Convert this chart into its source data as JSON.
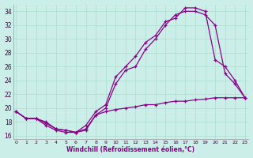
{
  "xlabel": "Windchill (Refroidissement éolien,°C)",
  "x_ticks": [
    0,
    1,
    2,
    3,
    4,
    5,
    6,
    7,
    8,
    9,
    10,
    11,
    12,
    13,
    14,
    15,
    16,
    17,
    18,
    19,
    20,
    21,
    22,
    23
  ],
  "ylim": [
    15.5,
    35.0
  ],
  "xlim": [
    -0.3,
    23.3
  ],
  "yticks": [
    16,
    18,
    20,
    22,
    24,
    26,
    28,
    30,
    32,
    34
  ],
  "line_color": "#880088",
  "bg_color": "#cceee8",
  "grid_color": "#aaddcc",
  "lines": [
    {
      "x": [
        0,
        1,
        2,
        3,
        4,
        5,
        6,
        7,
        8,
        9,
        10,
        11,
        12,
        13,
        14,
        15,
        16,
        17,
        18,
        19,
        20,
        21,
        22,
        23
      ],
      "y": [
        19.5,
        18.5,
        18.5,
        18.0,
        17.0,
        16.8,
        16.5,
        17.5,
        19.5,
        20.5,
        24.5,
        26.0,
        27.5,
        29.5,
        30.5,
        32.5,
        33.0,
        34.5,
        34.5,
        34.0,
        27.0,
        26.0,
        24.0,
        21.5
      ]
    },
    {
      "x": [
        0,
        1,
        2,
        3,
        4,
        5,
        6,
        7,
        8,
        9,
        10,
        11,
        12,
        13,
        14,
        15,
        16,
        17,
        18,
        19,
        20,
        21,
        22,
        23
      ],
      "y": [
        19.5,
        18.5,
        18.5,
        17.5,
        16.8,
        16.5,
        16.5,
        17.0,
        19.0,
        20.0,
        23.5,
        25.5,
        26.0,
        28.5,
        30.0,
        32.0,
        33.5,
        34.0,
        34.0,
        33.5,
        32.0,
        25.0,
        23.5,
        21.5
      ]
    },
    {
      "x": [
        0,
        1,
        2,
        3,
        4,
        5,
        6,
        7,
        8,
        9,
        10,
        11,
        12,
        13,
        14,
        15,
        16,
        17,
        18,
        19,
        20,
        21,
        22,
        23
      ],
      "y": [
        19.5,
        18.5,
        18.5,
        17.8,
        17.0,
        16.8,
        16.5,
        16.8,
        19.0,
        19.5,
        19.8,
        20.0,
        20.2,
        20.5,
        20.5,
        20.8,
        21.0,
        21.0,
        21.2,
        21.3,
        21.5,
        21.5,
        21.5,
        21.5
      ]
    }
  ]
}
